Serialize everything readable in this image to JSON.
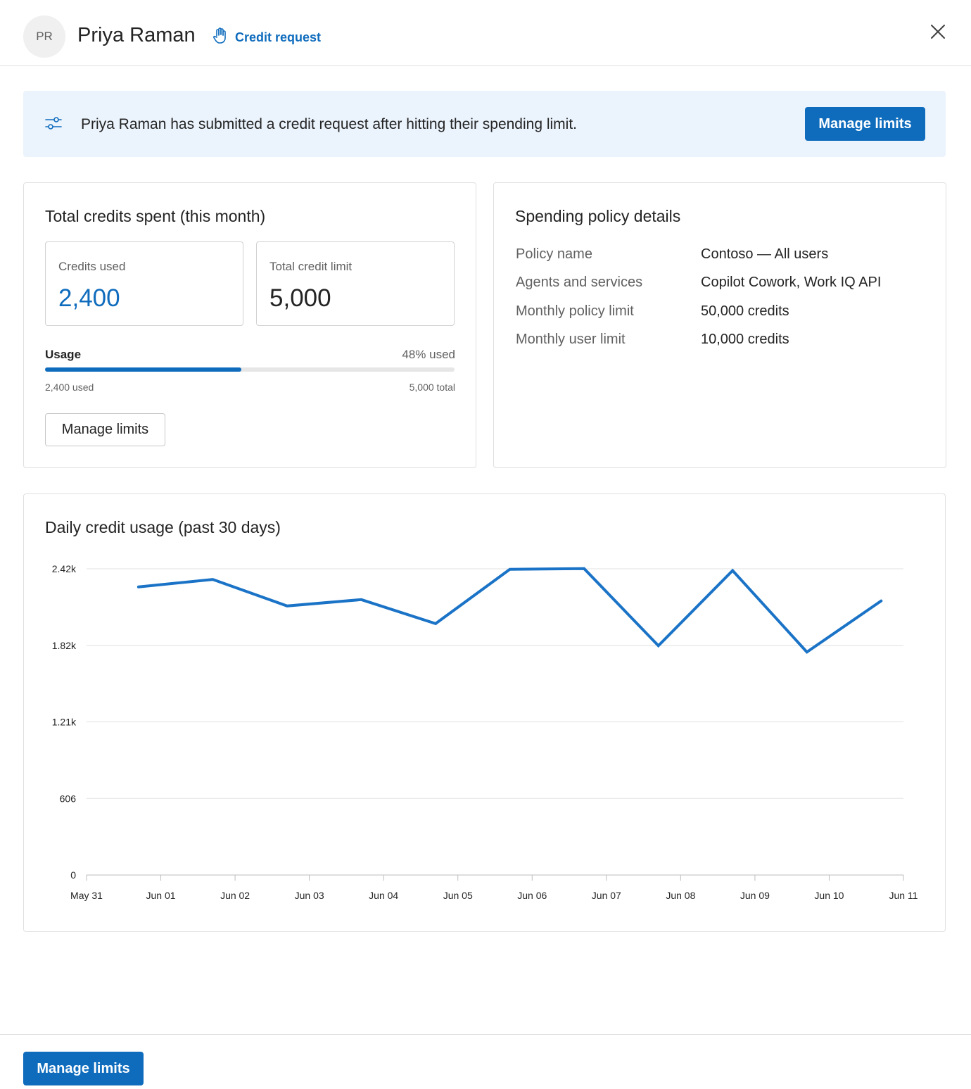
{
  "header": {
    "avatar_initials": "PR",
    "user_name": "Priya Raman",
    "credit_request_label": "Credit request",
    "close_icon": "close-icon",
    "hand_icon": "hand-raise-icon"
  },
  "banner": {
    "icon": "sliders-icon",
    "message": "Priya Raman has submitted a credit request after hitting their spending limit.",
    "button_label": "Manage limits"
  },
  "credits_card": {
    "title": "Total credits spent (this month)",
    "credits_used_label": "Credits used",
    "credits_used_value": "2,400",
    "total_limit_label": "Total credit limit",
    "total_limit_value": "5,000",
    "usage_label": "Usage",
    "usage_pct_text": "48% used",
    "usage_fraction": 0.48,
    "used_text": "2,400 used",
    "total_text": "5,000 total",
    "button_label": "Manage limits"
  },
  "policy_card": {
    "title": "Spending policy details",
    "rows": [
      {
        "key": "Policy name",
        "value": "Contoso — All users"
      },
      {
        "key": "Agents and services",
        "value": "Copilot Cowork, Work IQ API"
      },
      {
        "key": "Monthly policy limit",
        "value": "50,000 credits"
      },
      {
        "key": "Monthly user limit",
        "value": "10,000 credits"
      }
    ]
  },
  "chart_card": {
    "title": "Daily credit usage (past 30 days)"
  },
  "chart_data": {
    "type": "line",
    "title": "Daily credit usage (past 30 days)",
    "x_tick_labels": [
      "May 31",
      "Jun 01",
      "Jun 02",
      "Jun 03",
      "Jun 04",
      "Jun 05",
      "Jun 06",
      "Jun 07",
      "Jun 08",
      "Jun 09",
      "Jun 10",
      "Jun 11"
    ],
    "y_ticks": [
      0,
      606,
      1212,
      1818,
      2424
    ],
    "y_tick_labels": [
      "0",
      "606",
      "1.21k",
      "1.82k",
      "2.42k"
    ],
    "ylim": [
      0,
      2424
    ],
    "x": [
      "Jun 01 00:00",
      "Jun 02 00:00",
      "Jun 03 00:00",
      "Jun 04 00:00",
      "Jun 05 00:00",
      "Jun 06 00:00",
      "Jun 07 00:00",
      "Jun 08 00:00",
      "Jun 09 00:00",
      "Jun 10 00:00",
      "Jun 11 00:00"
    ],
    "values": [
      2280,
      2340,
      2130,
      2180,
      1990,
      2420,
      2425,
      1815,
      2410,
      1765,
      2170
    ],
    "grid": true,
    "legend": "none",
    "color": "#1a73c6"
  },
  "footer": {
    "button_label": "Manage limits"
  },
  "colors": {
    "accent": "#0f6cbd",
    "banner_bg": "#ebf3fc",
    "line": "#1a73c6"
  }
}
